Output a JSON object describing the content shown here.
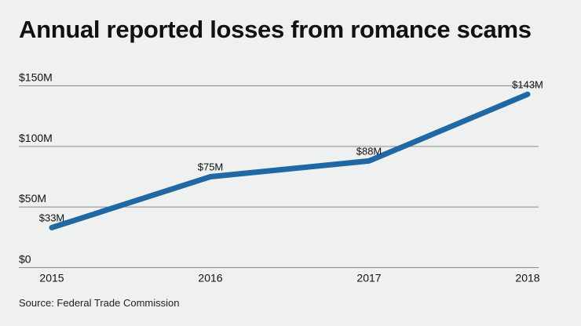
{
  "chart_data": {
    "type": "line",
    "title": "Annual reported losses from romance scams",
    "categories": [
      "2015",
      "2016",
      "2017",
      "2018"
    ],
    "values": [
      33,
      75,
      88,
      143
    ],
    "data_labels": [
      "$33M",
      "$75M",
      "$88M",
      "$143M"
    ],
    "yticks": [
      0,
      50,
      100,
      150
    ],
    "ytick_labels": [
      "$0",
      "$50M",
      "$100M",
      "$150M"
    ],
    "ylim": [
      0,
      150
    ],
    "grid": true,
    "line_color": "#1f68a3",
    "source": "Source: Federal Trade Commission"
  }
}
